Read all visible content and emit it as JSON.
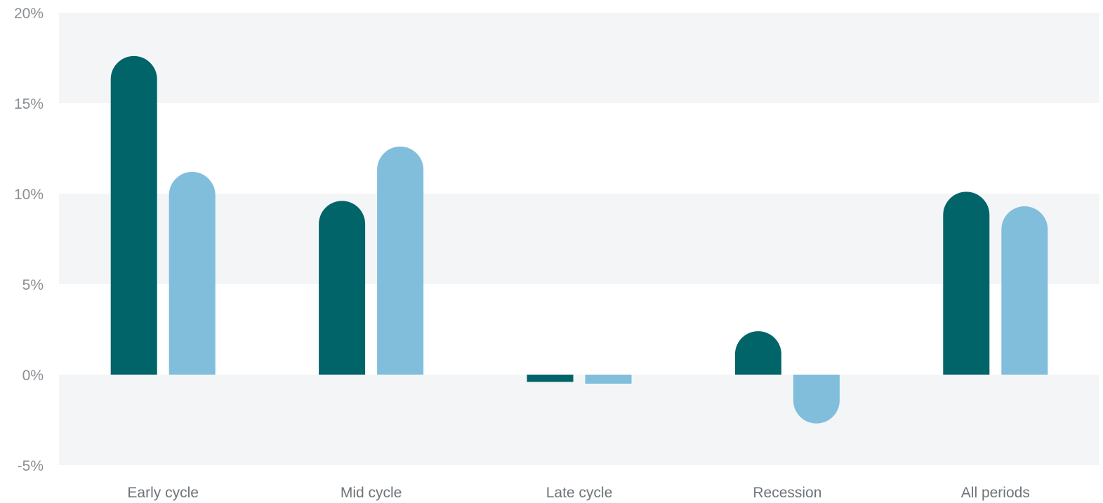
{
  "chart_data": {
    "type": "bar",
    "categories": [
      "Early cycle",
      "Mid cycle",
      "Late cycle",
      "Recession",
      "All periods"
    ],
    "series": [
      {
        "values": [
          17.6,
          9.6,
          -0.4,
          2.4,
          10.1
        ],
        "color": "#006468"
      },
      {
        "values": [
          11.2,
          12.6,
          -0.5,
          -2.7,
          9.3
        ],
        "color": "#80bedc"
      }
    ],
    "ylim": [
      -5,
      20
    ],
    "yticks": [
      20,
      15,
      10,
      5,
      0,
      -5
    ],
    "ytick_labels": [
      "20%",
      "15%",
      "10%",
      "5%",
      "0%",
      "-5%"
    ],
    "band_colors": [
      "#f4f5f7",
      "#ffffff"
    ],
    "grid": false,
    "legend": false
  }
}
